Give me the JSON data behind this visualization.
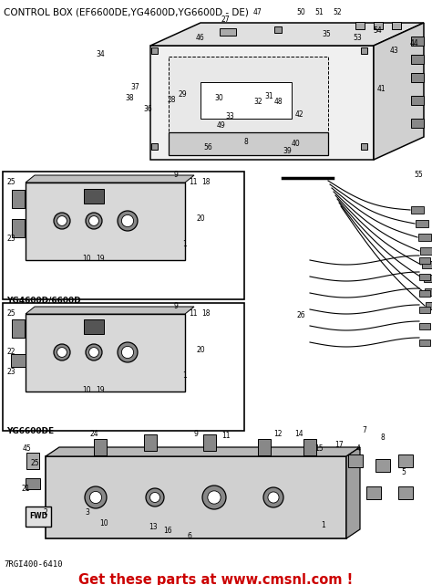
{
  "title": "CONTROL BOX (EF6600DE,YG4600D,YG6600D - DE)",
  "title_fontsize": 7.5,
  "title_color": "#000000",
  "bg_color": "#ffffff",
  "footer_text": "Get these parts at www.cmsnl.com !",
  "footer_color": "#cc0000",
  "footer_fontsize": 10.5,
  "part_number": "7RGI400-6410",
  "part_number_fontsize": 6.5,
  "part_number_color": "#000000",
  "fig_width": 4.74,
  "fig_height": 6.41,
  "dpi": 100,
  "label_yg4600": "YG4600D/6600D",
  "label_yg6600de": "YG6600DE",
  "diagram_color": "#c8c8c8",
  "wire_color": "#000000"
}
